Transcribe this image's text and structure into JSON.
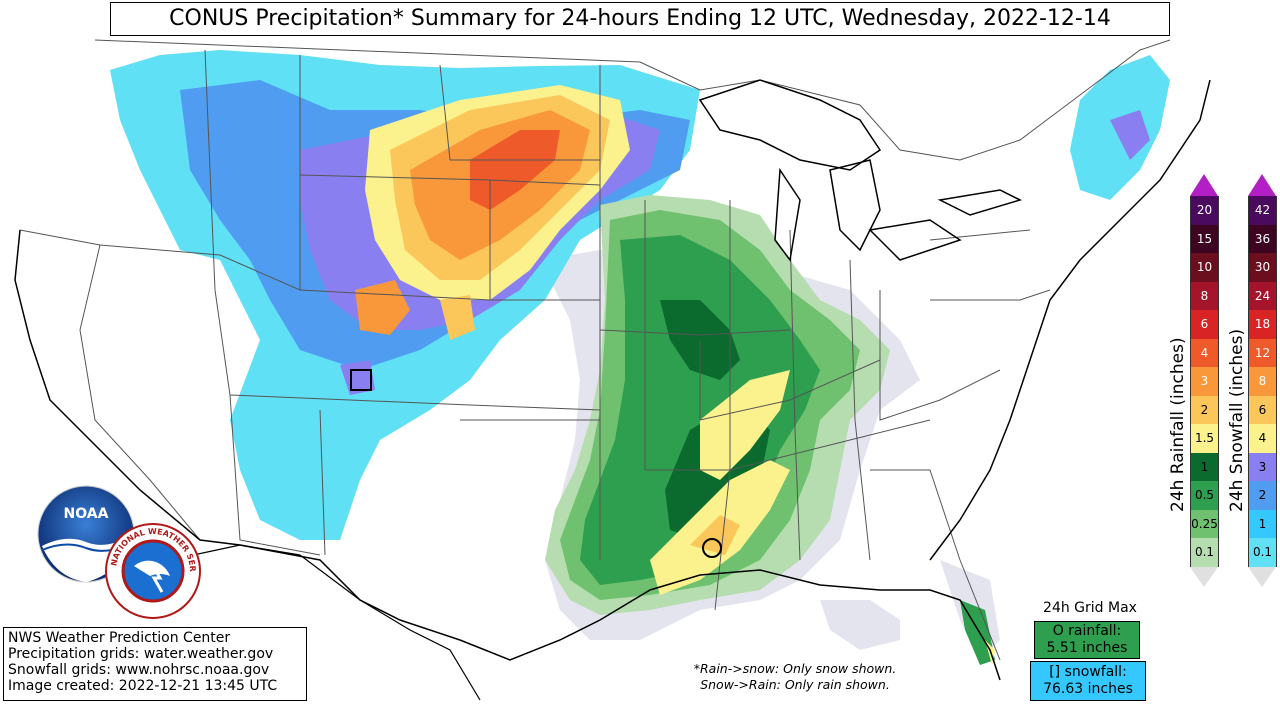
{
  "title": "CONUS Precipitation* Summary for 24-hours Ending 12 UTC, Wednesday, 2022-12-14",
  "credits": {
    "line1": "NWS Weather Prediction Center",
    "line2": "Precipitation grids: water.weather.gov",
    "line3": "Snowfall grids: www.nohrsc.noaa.gov",
    "line4": "Image created: 2022-12-21 13:45 UTC"
  },
  "note": {
    "line1": "*Rain->snow: Only snow shown.",
    "line2": "Snow->Rain: Only rain shown."
  },
  "grid_max": {
    "label": "24h Grid Max",
    "rain_label": "O rainfall:",
    "rain_value": "5.51 inches",
    "snow_label": "[] snowfall:",
    "snow_value": "76.63 inches"
  },
  "rain_legend": {
    "title": "24h Rainfall (inches)",
    "levels": [
      {
        "label": "20",
        "color": "#4a0a5e",
        "text": "#ffffff"
      },
      {
        "label": "15",
        "color": "#3d0521",
        "text": "#ffffff"
      },
      {
        "label": "10",
        "color": "#6b0f1e",
        "text": "#ffffff"
      },
      {
        "label": "8",
        "color": "#a4142a",
        "text": "#ffffff"
      },
      {
        "label": "6",
        "color": "#d82424",
        "text": "#ffffff"
      },
      {
        "label": "4",
        "color": "#ee5a2a",
        "text": "#ffffff"
      },
      {
        "label": "3",
        "color": "#f8983a",
        "text": "#ffffff"
      },
      {
        "label": "2",
        "color": "#fbc65a",
        "text": "#000000"
      },
      {
        "label": "1.5",
        "color": "#fbf28e",
        "text": "#000000"
      },
      {
        "label": "1",
        "color": "#0b6b2e",
        "text": "#000000"
      },
      {
        "label": "0.5",
        "color": "#2e9e4f",
        "text": "#000000"
      },
      {
        "label": "0.25",
        "color": "#6fc16f",
        "text": "#000000"
      },
      {
        "label": "0.1",
        "color": "#b6ddb0",
        "text": "#000000"
      }
    ]
  },
  "snow_legend": {
    "title": "24h Snowfall (inches)",
    "levels": [
      {
        "label": "42",
        "color": "#4a0a5e",
        "text": "#ffffff"
      },
      {
        "label": "36",
        "color": "#3d0521",
        "text": "#ffffff"
      },
      {
        "label": "30",
        "color": "#6b0f1e",
        "text": "#ffffff"
      },
      {
        "label": "24",
        "color": "#a4142a",
        "text": "#ffffff"
      },
      {
        "label": "18",
        "color": "#d82424",
        "text": "#ffffff"
      },
      {
        "label": "12",
        "color": "#ee5a2a",
        "text": "#ffffff"
      },
      {
        "label": "8",
        "color": "#f8983a",
        "text": "#ffffff"
      },
      {
        "label": "6",
        "color": "#fbc65a",
        "text": "#000000"
      },
      {
        "label": "4",
        "color": "#fbf28e",
        "text": "#000000"
      },
      {
        "label": "3",
        "color": "#8a7ff0",
        "text": "#000000"
      },
      {
        "label": "2",
        "color": "#4f9cf0",
        "text": "#000000"
      },
      {
        "label": "1",
        "color": "#34c8ff",
        "text": "#000000"
      },
      {
        "label": "0.1",
        "color": "#5fe0f5",
        "text": "#000000"
      }
    ]
  },
  "logos": {
    "noaa": "NOAA",
    "nws": "NATIONAL WEATHER SERVICE"
  },
  "colors": {
    "snow_light": "#5fe0f5",
    "snow_mid": "#4f9cf0",
    "snow_heavy": "#8a7ff0",
    "snow_orange": "#f8983a",
    "rain_light": "#b6ddb0",
    "rain_mid": "#2e9e4f",
    "rain_heavy": "#0b6b2e",
    "rain_yellow": "#fbf28e",
    "trace": "#e4e4ee"
  }
}
